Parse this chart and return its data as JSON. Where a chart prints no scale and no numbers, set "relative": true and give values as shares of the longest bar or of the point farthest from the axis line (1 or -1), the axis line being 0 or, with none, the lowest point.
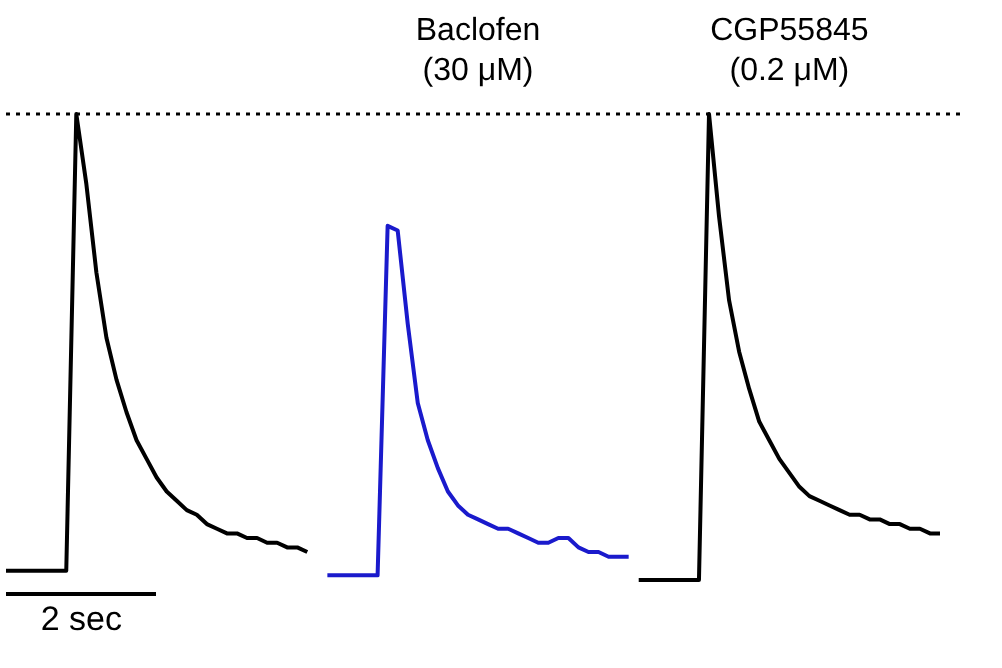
{
  "chart_data": {
    "type": "line",
    "relative": true,
    "tick_labels": false,
    "legend": false,
    "marker": "none",
    "line_style": "solid",
    "annotations": [
      "Baclofen (30 μM)",
      "CGP55845 (0.2 μM)",
      "2 sec"
    ],
    "ref_lines": [
      {
        "axis": "y",
        "value": 1,
        "line_style": "dotted",
        "color": "#000000"
      }
    ],
    "categories": [
      null,
      null,
      null,
      null,
      null,
      null,
      null,
      null,
      null,
      null,
      null,
      null,
      null,
      null,
      null,
      null,
      null,
      null,
      null,
      null,
      null,
      null,
      null,
      null,
      null,
      null,
      null,
      null,
      null,
      null,
      null,
      null,
      null,
      null,
      null,
      null,
      null,
      null,
      null,
      null,
      null,
      null,
      null,
      null,
      null,
      null,
      null,
      null,
      null,
      null,
      null,
      null,
      null,
      null,
      null,
      null,
      null,
      null,
      null,
      null,
      null,
      null,
      null,
      null,
      null,
      null,
      null,
      null,
      null,
      null,
      null,
      null,
      null,
      null,
      null,
      null,
      null,
      null,
      null,
      null,
      null,
      null,
      null,
      null,
      null,
      null,
      null,
      null,
      null,
      null,
      null,
      null,
      null,
      null
    ],
    "series": [
      {
        "color": "#000000",
        "values": [
          0.02,
          0.02,
          0.02,
          0.02,
          0.02,
          0.02,
          0.02,
          1.0,
          0.85,
          0.66,
          0.52,
          0.43,
          0.36,
          0.3,
          0.26,
          0.22,
          0.19,
          0.17,
          0.15,
          0.14,
          0.12,
          0.11,
          0.1,
          0.1,
          0.09,
          0.09,
          0.08,
          0.08,
          0.07,
          0.07,
          0.06,
          null,
          null,
          null,
          null,
          null,
          null,
          null,
          null,
          null,
          null,
          null,
          null,
          null,
          null,
          null,
          null,
          null,
          null,
          null,
          null,
          null,
          null,
          null,
          null,
          null,
          null,
          null,
          null,
          null,
          null,
          null,
          null,
          null,
          null,
          null,
          null,
          null,
          null,
          null,
          null,
          null,
          null,
          null,
          null,
          null,
          null,
          null,
          null,
          null,
          null,
          null,
          null,
          null,
          null,
          null,
          null,
          null,
          null,
          null,
          null,
          null,
          null,
          null
        ]
      },
      {
        "color": "#1a1acc",
        "values": [
          null,
          null,
          null,
          null,
          null,
          null,
          null,
          null,
          null,
          null,
          null,
          null,
          null,
          null,
          null,
          null,
          null,
          null,
          null,
          null,
          null,
          null,
          null,
          null,
          null,
          null,
          null,
          null,
          null,
          null,
          null,
          null,
          0.01,
          0.01,
          0.01,
          0.01,
          0.01,
          0.01,
          0.76,
          0.75,
          0.55,
          0.38,
          0.3,
          0.24,
          0.19,
          0.16,
          0.14,
          0.13,
          0.12,
          0.11,
          0.11,
          0.1,
          0.09,
          0.08,
          0.08,
          0.09,
          0.09,
          0.07,
          0.06,
          0.06,
          0.05,
          0.05,
          0.05,
          null,
          null,
          null,
          null,
          null,
          null,
          null,
          null,
          null,
          null,
          null,
          null,
          null,
          null,
          null,
          null,
          null,
          null,
          null,
          null,
          null,
          null,
          null,
          null,
          null,
          null,
          null,
          null,
          null,
          null,
          null
        ]
      },
      {
        "color": "#000000",
        "values": [
          null,
          null,
          null,
          null,
          null,
          null,
          null,
          null,
          null,
          null,
          null,
          null,
          null,
          null,
          null,
          null,
          null,
          null,
          null,
          null,
          null,
          null,
          null,
          null,
          null,
          null,
          null,
          null,
          null,
          null,
          null,
          null,
          null,
          null,
          null,
          null,
          null,
          null,
          null,
          null,
          null,
          null,
          null,
          null,
          null,
          null,
          null,
          null,
          null,
          null,
          null,
          null,
          null,
          null,
          null,
          null,
          null,
          null,
          null,
          null,
          null,
          null,
          null,
          0,
          0,
          0,
          0,
          0,
          0,
          0,
          1.0,
          0.78,
          0.6,
          0.49,
          0.41,
          0.34,
          0.3,
          0.26,
          0.23,
          0.2,
          0.18,
          0.17,
          0.16,
          0.15,
          0.14,
          0.14,
          0.13,
          0.13,
          0.12,
          0.12,
          0.11,
          0.11,
          0.1,
          0.1
        ]
      }
    ]
  }
}
